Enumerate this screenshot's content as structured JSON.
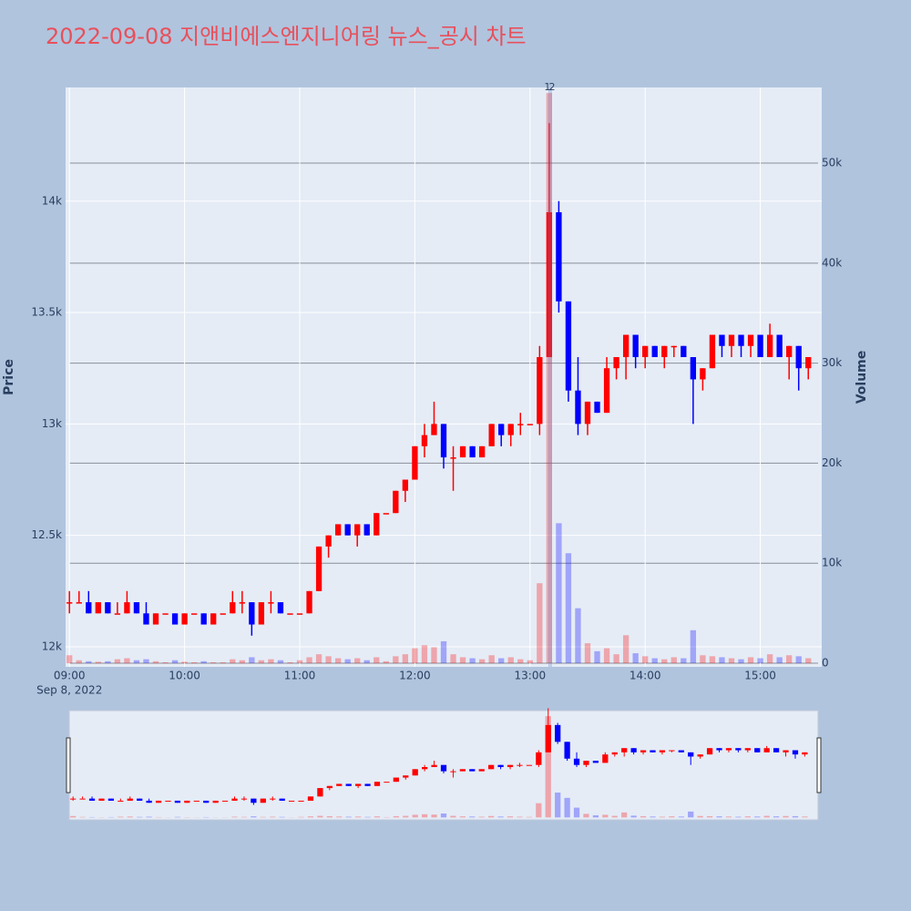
{
  "chart_data": {
    "type": "candlestick",
    "title": "2022-09-08 지앤비에스엔지니어링 뉴스_공시 차트",
    "x": [
      "09:00",
      "09:05",
      "09:10",
      "09:15",
      "09:20",
      "09:25",
      "09:30",
      "09:35",
      "09:40",
      "09:45",
      "09:50",
      "09:55",
      "10:00",
      "10:05",
      "10:10",
      "10:15",
      "10:20",
      "10:25",
      "10:30",
      "10:35",
      "10:40",
      "10:45",
      "10:50",
      "10:55",
      "11:00",
      "11:05",
      "11:10",
      "11:15",
      "11:20",
      "11:25",
      "11:30",
      "11:35",
      "11:40",
      "11:45",
      "11:50",
      "11:55",
      "12:00",
      "12:05",
      "12:10",
      "12:15",
      "12:20",
      "12:25",
      "12:30",
      "12:35",
      "12:40",
      "12:45",
      "12:50",
      "12:55",
      "13:00",
      "13:05",
      "13:10",
      "13:15",
      "13:20",
      "13:25",
      "13:30",
      "13:35",
      "13:40",
      "13:45",
      "13:50",
      "13:55",
      "14:00",
      "14:05",
      "14:10",
      "14:15",
      "14:20",
      "14:25",
      "14:30",
      "14:35",
      "14:40",
      "14:45",
      "14:50",
      "14:55",
      "15:00",
      "15:05",
      "15:10",
      "15:15",
      "15:20",
      "15:25"
    ],
    "open": [
      12200,
      12200,
      12200,
      12150,
      12200,
      12150,
      12150,
      12200,
      12150,
      12100,
      12150,
      12150,
      12100,
      12150,
      12150,
      12100,
      12150,
      12150,
      12200,
      12200,
      12100,
      12200,
      12200,
      12150,
      12150,
      12150,
      12250,
      12450,
      12500,
      12550,
      12500,
      12550,
      12500,
      12600,
      12600,
      12700,
      12750,
      12900,
      12950,
      13000,
      12850,
      12850,
      12900,
      12850,
      12900,
      13000,
      12950,
      13000,
      13000,
      13000,
      13300,
      13950,
      13550,
      13150,
      13000,
      13100,
      13050,
      13250,
      13300,
      13400,
      13300,
      13350,
      13300,
      13350,
      13350,
      13300,
      13200,
      13250,
      13400,
      13350,
      13400,
      13350,
      13400,
      13300,
      13400,
      13300,
      13350,
      13250
    ],
    "high": [
      12250,
      12250,
      12250,
      12200,
      12200,
      12200,
      12250,
      12200,
      12200,
      12150,
      12150,
      12150,
      12150,
      12150,
      12150,
      12150,
      12150,
      12250,
      12250,
      12200,
      12200,
      12250,
      12200,
      12150,
      12150,
      12250,
      12450,
      12500,
      12550,
      12550,
      12550,
      12550,
      12600,
      12600,
      12700,
      12750,
      12900,
      13000,
      13100,
      13000,
      12900,
      12900,
      12900,
      12900,
      13000,
      13000,
      13000,
      13050,
      13000,
      13350,
      14350,
      14000,
      13550,
      13300,
      13100,
      13100,
      13300,
      13300,
      13400,
      13400,
      13350,
      13350,
      13350,
      13350,
      13350,
      13300,
      13250,
      13400,
      13400,
      13400,
      13400,
      13400,
      13400,
      13450,
      13400,
      13350,
      13350,
      13300
    ],
    "low": [
      12150,
      12200,
      12150,
      12150,
      12150,
      12150,
      12150,
      12150,
      12100,
      12100,
      12150,
      12100,
      12100,
      12150,
      12100,
      12100,
      12150,
      12150,
      12150,
      12050,
      12100,
      12150,
      12150,
      12150,
      12150,
      12150,
      12250,
      12400,
      12500,
      12500,
      12450,
      12500,
      12500,
      12600,
      12600,
      12650,
      12750,
      12850,
      12950,
      12800,
      12700,
      12850,
      12850,
      12850,
      12900,
      12900,
      12900,
      12950,
      13000,
      12950,
      13300,
      13500,
      13100,
      12950,
      12950,
      13050,
      13050,
      13200,
      13200,
      13250,
      13250,
      13300,
      13250,
      13300,
      13300,
      13000,
      13150,
      13250,
      13300,
      13300,
      13300,
      13300,
      13300,
      13300,
      13300,
      13200,
      13150,
      13200
    ],
    "close": [
      12200,
      12200,
      12150,
      12200,
      12150,
      12150,
      12200,
      12150,
      12100,
      12150,
      12150,
      12100,
      12150,
      12150,
      12100,
      12150,
      12150,
      12200,
      12200,
      12100,
      12200,
      12200,
      12150,
      12150,
      12150,
      12250,
      12450,
      12500,
      12550,
      12500,
      12550,
      12500,
      12600,
      12600,
      12700,
      12750,
      12900,
      12950,
      13000,
      12850,
      12850,
      12900,
      12850,
      12900,
      13000,
      12950,
      13000,
      13000,
      13000,
      13300,
      13950,
      13550,
      13150,
      13000,
      13100,
      13050,
      13250,
      13300,
      13400,
      13300,
      13350,
      13300,
      13350,
      13350,
      13300,
      13200,
      13250,
      13400,
      13350,
      13400,
      13350,
      13400,
      13300,
      13400,
      13300,
      13350,
      13250,
      13300
    ],
    "volume": [
      800,
      300,
      200,
      150,
      200,
      400,
      500,
      300,
      400,
      200,
      100,
      300,
      150,
      100,
      200,
      100,
      100,
      400,
      300,
      600,
      300,
      400,
      300,
      100,
      300,
      600,
      900,
      700,
      500,
      400,
      500,
      300,
      600,
      200,
      700,
      900,
      1500,
      1800,
      1600,
      2200,
      900,
      600,
      500,
      400,
      800,
      500,
      600,
      400,
      300,
      8000,
      57000,
      14000,
      11000,
      5500,
      2000,
      1200,
      1500,
      900,
      2800,
      1000,
      700,
      500,
      400,
      600,
      500,
      3300,
      800,
      700,
      600,
      500,
      400,
      600,
      500,
      900,
      600,
      800,
      700,
      500
    ],
    "increasing_color": "#ff0000",
    "decreasing_color": "#0000ff",
    "xlim": [
      "08:58",
      "15:32"
    ],
    "xticks": [
      "09:00",
      "10:00",
      "11:00",
      "12:00",
      "13:00",
      "14:00",
      "15:00"
    ],
    "x_date_label": "Sep 8, 2022",
    "ylim": [
      11910,
      14510
    ],
    "yticks": [
      {
        "value": 12000,
        "label": "12k"
      },
      {
        "value": 12500,
        "label": "12.5k"
      },
      {
        "value": 13000,
        "label": "13k"
      },
      {
        "value": 13500,
        "label": "13.5k"
      },
      {
        "value": 14000,
        "label": "14k"
      }
    ],
    "y2lim": [
      -360,
      57560
    ],
    "y2ticks": [
      0,
      {
        "value": 10000,
        "label": "10k"
      },
      {
        "value": 20000,
        "label": "20k"
      },
      {
        "value": 30000,
        "label": "30k"
      },
      {
        "value": 40000,
        "label": "40k"
      },
      {
        "value": 50000,
        "label": "50k"
      }
    ],
    "y_label": "Price",
    "y2_label": "Volume",
    "annotations": [
      {
        "x": "13:10",
        "text": "1"
      },
      {
        "x": "13:11",
        "text": "2"
      }
    ],
    "grid": true,
    "rangeslider": true
  }
}
